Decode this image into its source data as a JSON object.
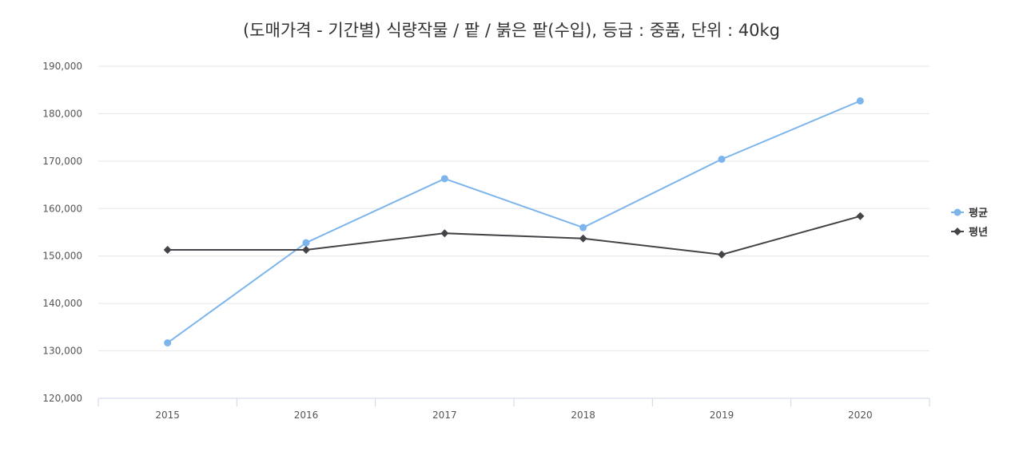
{
  "chart_data": {
    "type": "line",
    "title": "(도매가격 - 기간별) 식량작물 / 팥 / 붉은 팥(수입), 등급 : 중품, 단위 : 40kg",
    "xlabel": "",
    "ylabel": "",
    "categories": [
      "2015",
      "2016",
      "2017",
      "2018",
      "2019",
      "2020"
    ],
    "ylim": [
      120000,
      190000
    ],
    "yticks": [
      "120,000",
      "130,000",
      "140,000",
      "150,000",
      "160,000",
      "170,000",
      "180,000",
      "190,000"
    ],
    "grid": true,
    "legend_position": "right",
    "series": [
      {
        "name": "평균",
        "color": "#7cb5ec",
        "marker": "circle",
        "values": [
          131700,
          152800,
          166300,
          156000,
          170400,
          182700
        ]
      },
      {
        "name": "평년",
        "color": "#434348",
        "marker": "diamond",
        "values": [
          151300,
          151300,
          154800,
          153700,
          150300,
          158400
        ]
      }
    ]
  }
}
